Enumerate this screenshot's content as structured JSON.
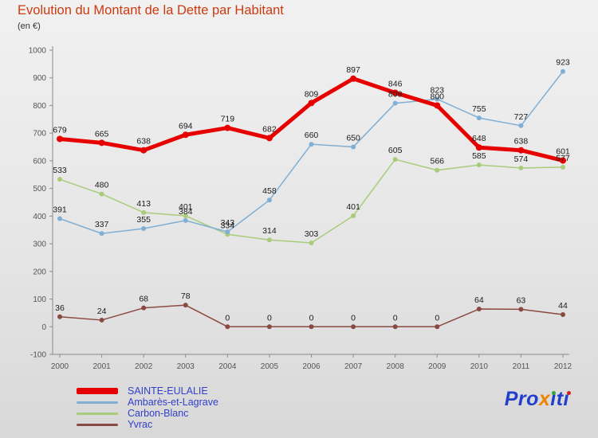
{
  "title": "Evolution du Montant de la Dette par Habitant",
  "subtitle": "(en €)",
  "colors": {
    "title": "#cc3a10",
    "legend_text": "#3340c8",
    "axis": "#8a8a8a",
    "logo_blue": "#1f3fcc",
    "logo_orange": "#f08300",
    "logo_green": "#3aa63a",
    "logo_red": "#d62020"
  },
  "chart_data": {
    "type": "line",
    "title": "Evolution du Montant de la Dette par Habitant",
    "subtitle": "(en €)",
    "x": [
      2000,
      2001,
      2002,
      2003,
      2004,
      2005,
      2006,
      2007,
      2008,
      2009,
      2010,
      2011,
      2012
    ],
    "ylim": [
      -100,
      1000
    ],
    "ytick_step": 100,
    "grid": false,
    "legend_position": "bottom-left",
    "series": [
      {
        "name": "SAINTE-EULALIE",
        "color": "#e60000",
        "width": 5,
        "values": [
          679,
          665,
          638,
          694,
          719,
          682,
          809,
          897,
          846,
          800,
          648,
          638,
          601
        ]
      },
      {
        "name": "Ambarès-et-Lagrave",
        "color": "#7fafd4",
        "width": 1.5,
        "values": [
          391,
          337,
          355,
          384,
          343,
          458,
          660,
          650,
          808,
          823,
          755,
          727,
          923
        ]
      },
      {
        "name": "Carbon-Blanc",
        "color": "#a8cc7a",
        "width": 1.5,
        "values": [
          533,
          480,
          413,
          401,
          334,
          314,
          303,
          401,
          605,
          566,
          585,
          574,
          577
        ]
      },
      {
        "name": "Yvrac",
        "color": "#8a4a42",
        "width": 1.5,
        "values": [
          36,
          24,
          68,
          78,
          0,
          0,
          0,
          0,
          0,
          0,
          64,
          63,
          44
        ]
      }
    ]
  },
  "logo": {
    "pro": "Pro",
    "x": "x",
    "iti": "ıtı"
  }
}
